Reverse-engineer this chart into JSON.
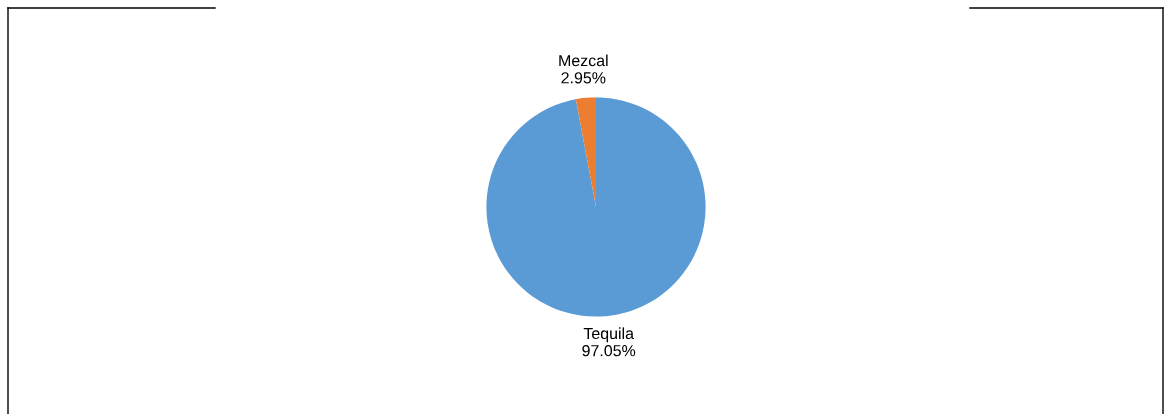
{
  "chart_data": {
    "type": "pie",
    "categories": [
      "Tequila",
      "Mezcal"
    ],
    "values": [
      97.05,
      2.95
    ],
    "colors": [
      "#5b9bd5",
      "#ed7d31"
    ],
    "value_labels": [
      "97.05%",
      "2.95%"
    ],
    "legend": false
  }
}
